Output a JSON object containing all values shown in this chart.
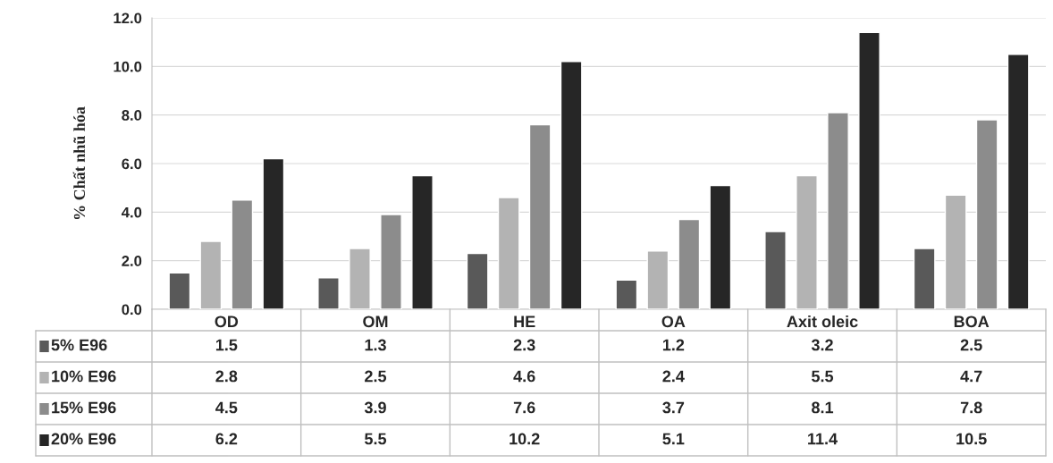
{
  "chart_data": {
    "type": "bar",
    "ylabel": "% Chất nhũ hóa",
    "categories": [
      "OD",
      "OM",
      "HE",
      "OA",
      "Axit oleic",
      "BOA"
    ],
    "series": [
      {
        "name": "5% E96",
        "color": "#595959",
        "values": [
          1.5,
          1.3,
          2.3,
          1.2,
          3.2,
          2.5
        ]
      },
      {
        "name": "10% E96",
        "color": "#b3b3b3",
        "values": [
          2.8,
          2.5,
          4.6,
          2.4,
          5.5,
          4.7
        ]
      },
      {
        "name": "15% E96",
        "color": "#8c8c8c",
        "values": [
          4.5,
          3.9,
          7.6,
          3.7,
          8.1,
          7.8
        ]
      },
      {
        "name": "20% E96",
        "color": "#262626",
        "values": [
          6.2,
          5.5,
          10.2,
          5.1,
          11.4,
          10.5
        ]
      }
    ],
    "ylim": [
      0,
      12
    ],
    "yticks": [
      {
        "value": 0,
        "label": "0.0"
      },
      {
        "value": 2,
        "label": "2.0"
      },
      {
        "value": 4,
        "label": "4.0"
      },
      {
        "value": 6,
        "label": "6.0"
      },
      {
        "value": 8,
        "label": "8.0"
      },
      {
        "value": 10,
        "label": "10.0"
      },
      {
        "value": 12,
        "label": "12.0"
      }
    ],
    "grid": "y",
    "data_labels": true,
    "legend": "bottom"
  }
}
